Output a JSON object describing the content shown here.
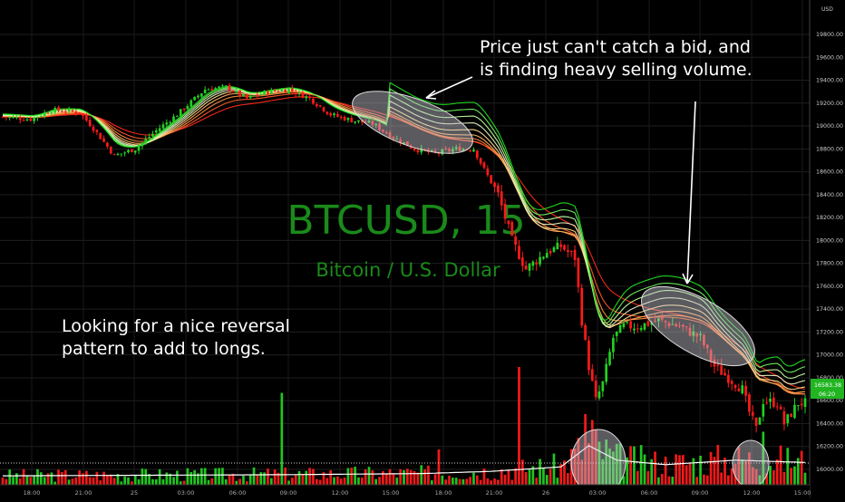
{
  "chart_data": {
    "type": "candlestick",
    "symbol": "BTCUSD, 15",
    "description": "Bitcoin / U.S. Dollar",
    "currency_label": "USD",
    "last_price_label": "16583.38",
    "countdown_label": "06:20",
    "y_tick_labels": [
      "19800.00",
      "19600.00",
      "19400.00",
      "19200.00",
      "19000.00",
      "18800.00",
      "18600.00",
      "18400.00",
      "18200.00",
      "18000.00",
      "17800.00",
      "17600.00",
      "17400.00",
      "17200.00",
      "17000.00",
      "16800.00",
      "16600.00",
      "16400.00",
      "16200.00",
      "16000.00"
    ],
    "y_tick_values": [
      19800,
      19600,
      19400,
      19200,
      19000,
      18800,
      18600,
      18400,
      18200,
      18000,
      17800,
      17600,
      17400,
      17200,
      17000,
      16800,
      16600,
      16400,
      16200,
      16000
    ],
    "x_tick_labels": [
      "18:00",
      "21:00",
      "25",
      "03:00",
      "06:00",
      "09:00",
      "12:00",
      "15:00",
      "18:00",
      "21:00",
      "26",
      "03:00",
      "06:00",
      "09:00",
      "12:00",
      "15:00"
    ],
    "ylim": [
      15950,
      19950
    ],
    "grid": true,
    "price_path": [
      {
        "i": 0,
        "p": 19080
      },
      {
        "i": 8,
        "p": 19060
      },
      {
        "i": 14,
        "p": 19140
      },
      {
        "i": 22,
        "p": 19120
      },
      {
        "i": 26,
        "p": 18980
      },
      {
        "i": 32,
        "p": 18740
      },
      {
        "i": 38,
        "p": 18800
      },
      {
        "i": 44,
        "p": 18960
      },
      {
        "i": 50,
        "p": 19100
      },
      {
        "i": 58,
        "p": 19320
      },
      {
        "i": 64,
        "p": 19340
      },
      {
        "i": 70,
        "p": 19240
      },
      {
        "i": 76,
        "p": 19300
      },
      {
        "i": 82,
        "p": 19320
      },
      {
        "i": 88,
        "p": 19240
      },
      {
        "i": 94,
        "p": 19100
      },
      {
        "i": 100,
        "p": 19050
      },
      {
        "i": 106,
        "p": 19020
      },
      {
        "i": 112,
        "p": 18900
      },
      {
        "i": 118,
        "p": 18800
      },
      {
        "i": 124,
        "p": 18760
      },
      {
        "i": 130,
        "p": 18800
      },
      {
        "i": 135,
        "p": 18800
      },
      {
        "i": 138,
        "p": 18620
      },
      {
        "i": 142,
        "p": 18400
      },
      {
        "i": 146,
        "p": 18000
      },
      {
        "i": 150,
        "p": 17750
      },
      {
        "i": 156,
        "p": 17900
      },
      {
        "i": 160,
        "p": 17950
      },
      {
        "i": 164,
        "p": 17850
      },
      {
        "i": 166,
        "p": 17300
      },
      {
        "i": 168,
        "p": 16900
      },
      {
        "i": 170,
        "p": 16600
      },
      {
        "i": 172,
        "p": 16750
      },
      {
        "i": 175,
        "p": 17150
      },
      {
        "i": 178,
        "p": 17250
      },
      {
        "i": 182,
        "p": 17250
      },
      {
        "i": 188,
        "p": 17300
      },
      {
        "i": 194,
        "p": 17250
      },
      {
        "i": 200,
        "p": 17150
      },
      {
        "i": 204,
        "p": 16900
      },
      {
        "i": 208,
        "p": 16800
      },
      {
        "i": 212,
        "p": 16700
      },
      {
        "i": 214,
        "p": 16500
      },
      {
        "i": 216,
        "p": 16350
      },
      {
        "i": 218,
        "p": 16600
      },
      {
        "i": 222,
        "p": 16580
      },
      {
        "i": 224,
        "p": 16400
      },
      {
        "i": 228,
        "p": 16580
      }
    ],
    "ribbon_offsets": [
      0,
      40,
      80,
      120,
      170,
      230,
      290,
      350,
      410
    ],
    "ribbon_colors": [
      "#ff2a1a",
      "#ff5a2a",
      "#ff8a3a",
      "#ffb060",
      "#ffe090",
      "#e0f0c0",
      "#c0ffa0",
      "#70f060",
      "#20e020"
    ],
    "volume_profile": [
      {
        "i": 0,
        "v": 0.08
      },
      {
        "i": 80,
        "v": 0.09
      },
      {
        "i": 120,
        "v": 0.1
      },
      {
        "i": 140,
        "v": 0.12
      },
      {
        "i": 160,
        "v": 0.16
      },
      {
        "i": 168,
        "v": 0.35
      },
      {
        "i": 176,
        "v": 0.22
      },
      {
        "i": 190,
        "v": 0.18
      },
      {
        "i": 210,
        "v": 0.22
      },
      {
        "i": 230,
        "v": 0.2
      }
    ],
    "volume_spikes": [
      {
        "i": 80,
        "v": 0.78
      },
      {
        "i": 125,
        "v": 0.3
      },
      {
        "i": 148,
        "v": 1.0
      },
      {
        "i": 167,
        "v": 0.6
      },
      {
        "i": 169,
        "v": 0.55
      },
      {
        "i": 218,
        "v": 0.45
      }
    ],
    "annotations": [
      {
        "lines": [
          "Price just can't catch a bid, and",
          "is finding heavy selling volume."
        ]
      },
      {
        "lines": [
          "Looking for a nice reversal",
          "pattern to add to longs."
        ]
      }
    ]
  }
}
